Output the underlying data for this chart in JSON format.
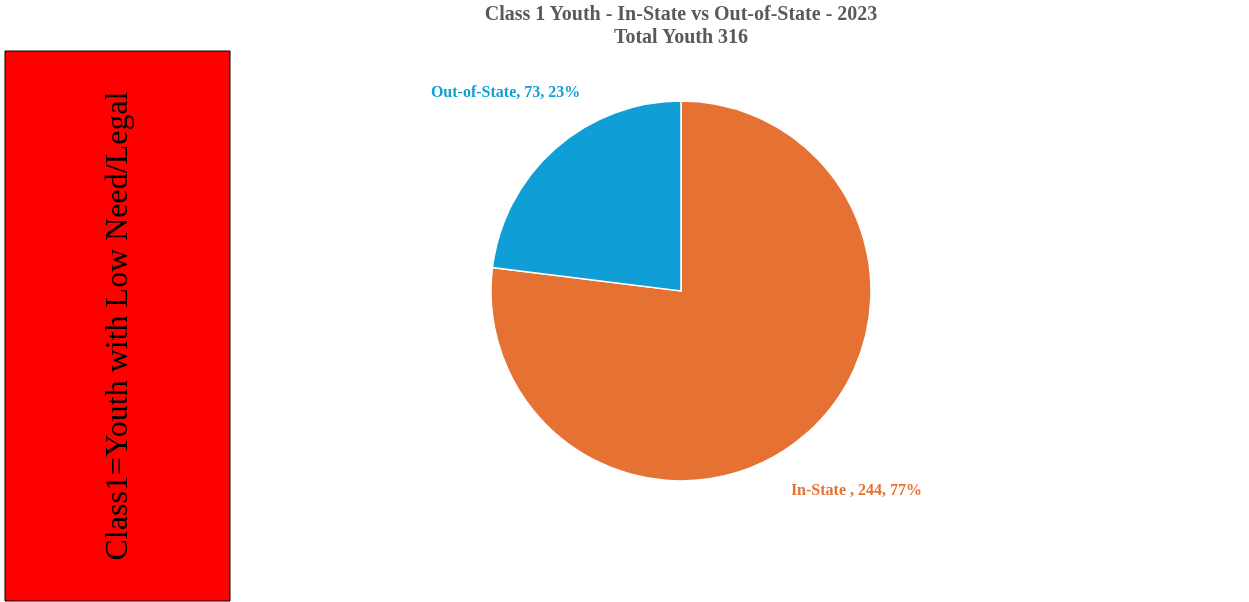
{
  "chart_data": {
    "type": "pie",
    "title": "Class 1 Youth - In-State vs Out-of-State - 2023",
    "subtitle": "Total Youth 316",
    "categories": [
      "In-State ",
      "Out-of-State"
    ],
    "values": [
      244,
      73
    ],
    "colors": [
      "#e57232",
      "#0f9ed5"
    ],
    "value_labels": [
      "244, 77%",
      "73, 23%"
    ],
    "annotations": [
      "Class1=Youth with Low Need/Legal"
    ],
    "legend": false
  }
}
